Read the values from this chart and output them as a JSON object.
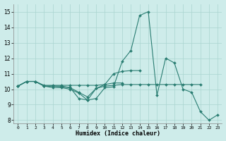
{
  "xlabel": "Humidex (Indice chaleur)",
  "xlim": [
    -0.5,
    23.5
  ],
  "ylim": [
    7.8,
    15.5
  ],
  "yticks": [
    8,
    9,
    10,
    11,
    12,
    13,
    14,
    15
  ],
  "xticks": [
    0,
    1,
    2,
    3,
    4,
    5,
    6,
    7,
    8,
    9,
    10,
    11,
    12,
    13,
    14,
    15,
    16,
    17,
    18,
    19,
    20,
    21,
    22,
    23
  ],
  "bg_color": "#ceecea",
  "grid_color": "#aad4d0",
  "line_color": "#2a7d72",
  "series": [
    {
      "x": [
        0,
        1,
        2,
        3,
        4,
        5,
        6,
        7,
        8,
        9,
        10,
        11,
        12,
        13,
        14,
        15,
        16,
        17,
        18,
        19,
        20,
        21,
        22,
        23
      ],
      "y": [
        10.2,
        10.5,
        10.5,
        10.2,
        10.2,
        10.15,
        10.1,
        9.4,
        9.3,
        9.4,
        10.1,
        10.15,
        11.8,
        12.5,
        14.75,
        15.0,
        9.6,
        12.0,
        11.7,
        10.0,
        9.8,
        8.55,
        8.0,
        8.35
      ]
    },
    {
      "x": [
        0,
        1,
        2,
        3,
        4,
        5,
        6,
        7,
        8,
        9,
        10,
        11,
        12,
        13,
        14,
        15,
        16,
        17,
        18,
        19,
        20,
        21
      ],
      "y": [
        10.2,
        10.5,
        10.5,
        10.2,
        10.1,
        10.1,
        10.0,
        9.75,
        9.3,
        10.05,
        10.2,
        10.25,
        10.3,
        10.3,
        10.3,
        10.3,
        10.3,
        10.3,
        10.3,
        10.3,
        10.3,
        10.3
      ]
    },
    {
      "x": [
        0,
        1,
        2,
        3,
        4,
        5,
        6,
        7,
        8,
        9,
        10,
        11,
        12,
        13,
        14
      ],
      "y": [
        10.2,
        10.5,
        10.5,
        10.2,
        10.2,
        10.2,
        10.1,
        9.8,
        9.5,
        10.05,
        10.3,
        11.0,
        11.15,
        11.2,
        11.2
      ]
    },
    {
      "x": [
        0,
        1,
        2,
        3,
        4,
        5,
        6,
        7,
        8,
        9,
        10,
        11,
        12
      ],
      "y": [
        10.2,
        10.5,
        10.5,
        10.25,
        10.25,
        10.25,
        10.25,
        10.25,
        10.25,
        10.25,
        10.3,
        10.4,
        10.4
      ]
    }
  ]
}
